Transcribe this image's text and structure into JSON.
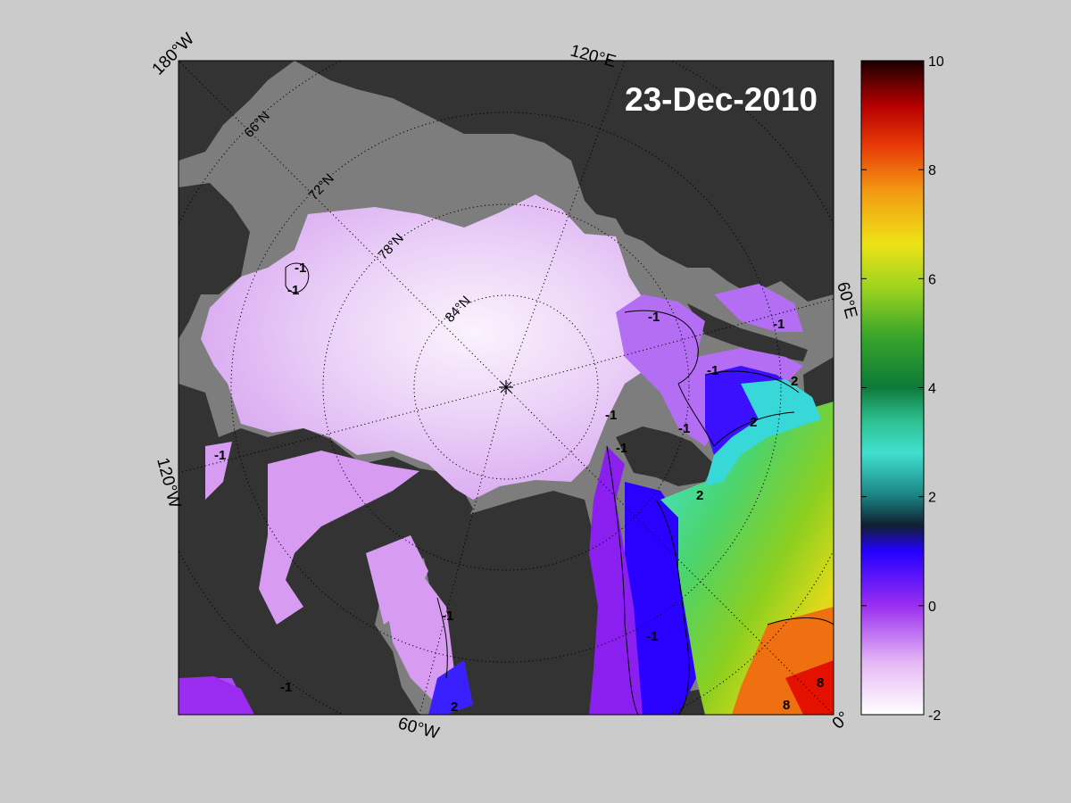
{
  "map": {
    "date": "23-Dec-2010",
    "edge_labels": [
      {
        "text": "180°W",
        "pos": "top-left corner"
      },
      {
        "text": "120°E",
        "pos": "top edge"
      },
      {
        "text": "60°E",
        "pos": "right edge"
      },
      {
        "text": "0°",
        "pos": "bottom-right corner"
      },
      {
        "text": "60°W",
        "pos": "bottom edge"
      },
      {
        "text": "120°W",
        "pos": "left edge"
      }
    ],
    "latitude_labels": [
      "66°N",
      "72°N",
      "78°N",
      "84°N"
    ],
    "contour_labels": [
      "-1",
      "-1",
      "-1",
      "-1",
      "-1",
      "-1",
      "-1",
      "-1",
      "-1",
      "-1",
      "-1",
      "-1",
      "2",
      "2",
      "2",
      "2",
      "8",
      "8"
    ],
    "colors": {
      "land": "#333333",
      "shelf": "#7d7d7d",
      "page": "#cbcbcb",
      "ice_cold": "#f6e6fb",
      "ice": "#d79cf2",
      "warm_purple": "#9a2cf0",
      "blue": "#2200ff",
      "cyan": "#3fe8e0",
      "green": "#59c020",
      "yellow": "#e7e21a",
      "orange": "#ef8a10",
      "red": "#e00000"
    }
  },
  "colorbar": {
    "min": -2,
    "max": 10,
    "ticks": [
      "-2",
      "0",
      "2",
      "4",
      "6",
      "8",
      "10"
    ]
  }
}
